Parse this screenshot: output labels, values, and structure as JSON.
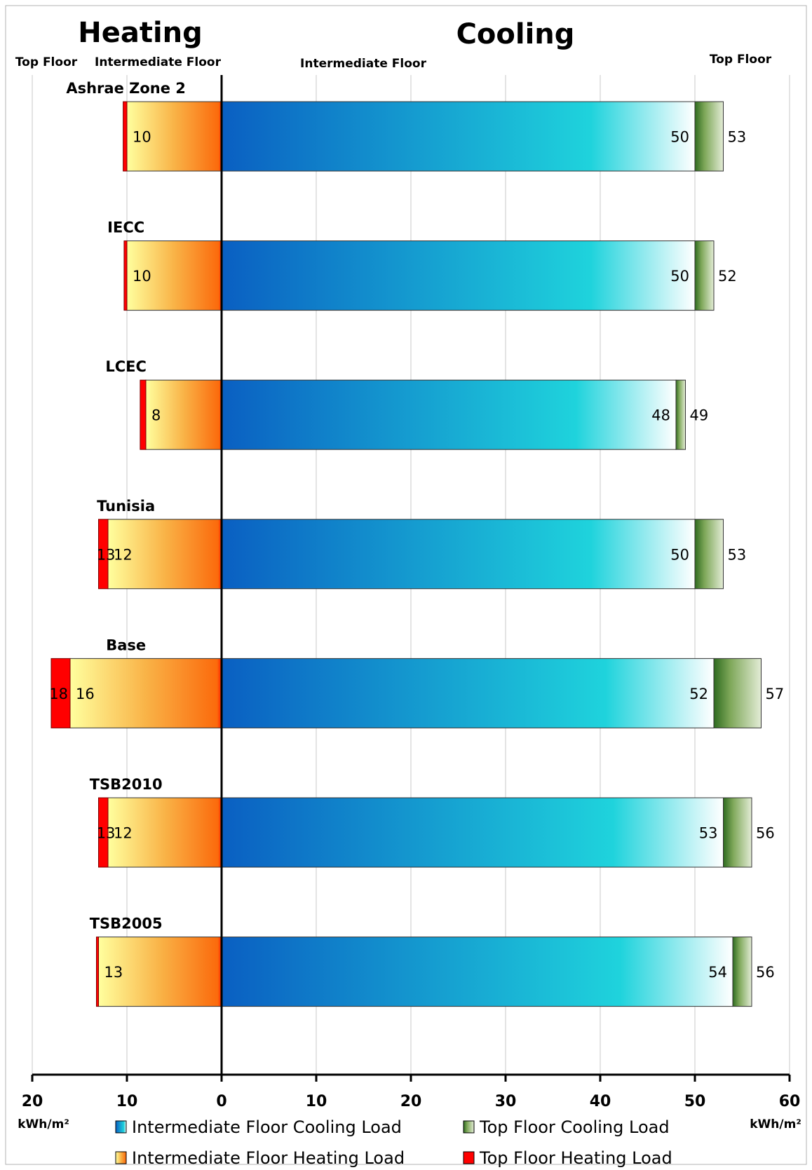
{
  "chart_data": {
    "type": "bar",
    "orientation": "horizontal",
    "titles": {
      "left": "Heating",
      "right": "Cooling"
    },
    "subheaders": {
      "left_outer": "Top Floor",
      "left_inner": "Intermediate Floor",
      "right_inner": "Intermediate Floor",
      "right_outer": "Top Floor"
    },
    "categories": [
      "Ashrae Zone 2",
      "IECC",
      "LCEC",
      "Tunisia",
      "Base",
      "TSB2010",
      "TSB2005"
    ],
    "series": [
      {
        "name": "Intermediate Floor Cooling Load",
        "values": [
          50,
          50,
          48,
          50,
          52,
          53,
          54
        ]
      },
      {
        "name": "Top Floor Cooling Load",
        "values": [
          53,
          52,
          49,
          53,
          57,
          56,
          56
        ]
      },
      {
        "name": "Intermediate Floor Heating Load",
        "values": [
          10,
          10,
          8,
          12,
          16,
          12,
          13
        ]
      },
      {
        "name": "Top Floor Heating Load",
        "values": [
          10.4,
          10.3,
          8.6,
          13,
          18,
          13,
          13.2
        ]
      }
    ],
    "value_labels": {
      "cooling_intermediate": [
        "50",
        "50",
        "48",
        "50",
        "52",
        "53",
        "54"
      ],
      "cooling_top": [
        "53",
        "52",
        "49",
        "53",
        "57",
        "56",
        "56"
      ],
      "heating_intermediate": [
        "10",
        "10",
        "8",
        "12",
        "16",
        "12",
        "13"
      ],
      "heating_top": [
        "",
        "",
        "",
        "13",
        "18",
        "13",
        ""
      ]
    },
    "xlim": [
      -20,
      60
    ],
    "ticks": {
      "values": [
        -20,
        -10,
        0,
        10,
        20,
        30,
        40,
        50,
        60
      ],
      "labels": [
        "20",
        "10",
        "0",
        "10",
        "20",
        "30",
        "40",
        "50",
        "60"
      ]
    },
    "units": {
      "left": "kWh/m²",
      "right": "kWh/m²"
    },
    "grid": true,
    "legend_position": "bottom",
    "colors": {
      "cooling_intermediate": [
        "#0a5fc2",
        "#1fd3dc",
        "#ffffff"
      ],
      "cooling_top": [
        "#2e6b1f",
        "#7fa85a",
        "#e3ecd6"
      ],
      "heating_intermediate": [
        "#ffff9e",
        "#f9b347",
        "#fb6a0c"
      ],
      "heating_top": "#ff0000"
    }
  }
}
